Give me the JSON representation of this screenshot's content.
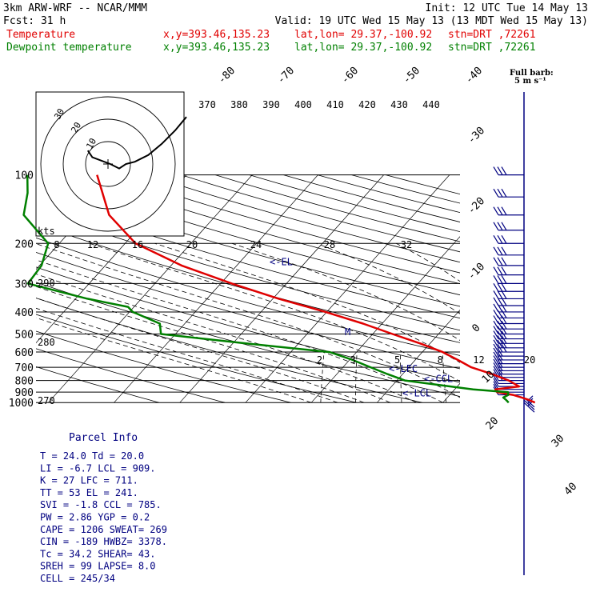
{
  "header": {
    "line1_left": "3km ARW-WRF -- NCAR/MMM",
    "line1_right": "Init: 12 UTC Tue 14 May 13",
    "line2_left": "Fcst:    31 h",
    "line2_right": "Valid: 19 UTC Wed 15 May 13 (13 MDT Wed 15 May 13)",
    "temp_label": "Temperature",
    "temp_xy": "x,y=393.46,135.23",
    "temp_latlon": "lat,lon= 29.37,-100.92",
    "temp_stn": "stn=DRT ,72261",
    "dew_label": "Dewpoint temperature",
    "dew_xy": "x,y=393.46,135.23",
    "dew_latlon": "lat,lon= 29.37,-100.92",
    "dew_stn": "stn=DRT ,72261"
  },
  "barb_legend": {
    "line1": "Full barb:",
    "line2": "5 m s⁻¹"
  },
  "colors": {
    "temperature": "#e00000",
    "dewpoint": "#008000",
    "barbs": "#000080",
    "grid": "#000000"
  },
  "chart_data": {
    "type": "line",
    "pressure_levels": [
      "100",
      "200",
      "300",
      "400",
      "500",
      "600",
      "700",
      "800",
      "900",
      "1000"
    ],
    "isotherm_labels": [
      "-80",
      "-70",
      "-60",
      "-50",
      "-40",
      "-30",
      "-20",
      "-10",
      "0",
      "10",
      "20",
      "30",
      "40"
    ],
    "theta_labels": [
      "370",
      "380",
      "390",
      "400",
      "410",
      "420",
      "430",
      "440"
    ],
    "mixing_ratio_labels": [
      "2",
      "3",
      "5",
      "8",
      "12",
      "20"
    ],
    "dry_adiabat_labels": [
      "290",
      "280",
      "270"
    ],
    "hodograph": {
      "unit_label": "kts",
      "axis_labels": [
        "8",
        "12",
        "16",
        "20",
        "24",
        "28",
        "32"
      ],
      "ring_labels": [
        "10",
        "20",
        "30"
      ],
      "u": [
        -9,
        -7,
        1,
        5,
        8,
        12,
        18,
        24,
        30,
        35
      ],
      "v": [
        6,
        3,
        0,
        -2,
        0,
        1,
        4,
        9,
        15,
        21
      ]
    },
    "series": [
      {
        "name": "Temperature",
        "p": [
          100,
          150,
          200,
          250,
          300,
          350,
          400,
          450,
          500,
          550,
          600,
          650,
          700,
          750,
          800,
          850,
          875,
          900,
          925,
          950,
          975,
          1000
        ],
        "t": [
          -73.6,
          -66.3,
          -58.4,
          -48.4,
          -38.3,
          -29.1,
          -20.2,
          -12.9,
          -7.0,
          -1.5,
          3.1,
          6.5,
          9.5,
          13.6,
          17.0,
          19.4,
          16.2,
          16.8,
          19.6,
          21.3,
          22.8,
          24.0
        ]
      },
      {
        "name": "Dewpoint temperature",
        "p": [
          100,
          120,
          150,
          200,
          250,
          300,
          350,
          380,
          400,
          450,
          500,
          550,
          600,
          650,
          700,
          750,
          800,
          850,
          875,
          900,
          925,
          950,
          975,
          1000
        ],
        "t": [
          -84.2,
          -81.7,
          -79.3,
          -71.7,
          -69.7,
          -69.3,
          -58.2,
          -50.9,
          -49.5,
          -43.8,
          -42.2,
          -28.0,
          -14.1,
          -9.5,
          -5.8,
          -2.3,
          1.2,
          9.0,
          12.8,
          18.5,
          18.9,
          18.5,
          19.3,
          20.0
        ]
      }
    ],
    "wind_barbs_p": [
      100,
      125,
      150,
      175,
      200,
      225,
      250,
      275,
      300,
      325,
      350,
      375,
      400,
      425,
      450,
      475,
      500,
      525,
      550,
      575,
      600,
      625,
      650,
      675,
      700,
      725,
      750,
      775,
      800,
      825,
      850,
      875,
      900,
      925,
      950,
      975,
      1000
    ],
    "markers": [
      {
        "label": "<-EL",
        "p": 241
      },
      {
        "label": "M",
        "p": 490
      },
      {
        "label": "<-LFC",
        "p": 711
      },
      {
        "label": "<-CCL",
        "p": 785
      },
      {
        "label": "<-LCL",
        "p": 909
      }
    ]
  },
  "parcel_info": {
    "title": "Parcel Info",
    "rows": [
      "T  =    24.0  Td =  20.0",
      "LI =    -6.7  LCL =  909.",
      "K  =     27  LFC =  711.",
      "TT =     53  EL  =  241.",
      "SVI =   -1.8  CCL =  785.",
      "PW  =   2.86  YGP =  0.2",
      "CAPE =  1206  SWEAT=  269",
      "CIN  =  -189  HWBZ= 3378.",
      "Tc  =   34.2  SHEAR=  43.",
      "SREH =    99  LAPSE=  8.0",
      "CELL = 245/34"
    ]
  }
}
